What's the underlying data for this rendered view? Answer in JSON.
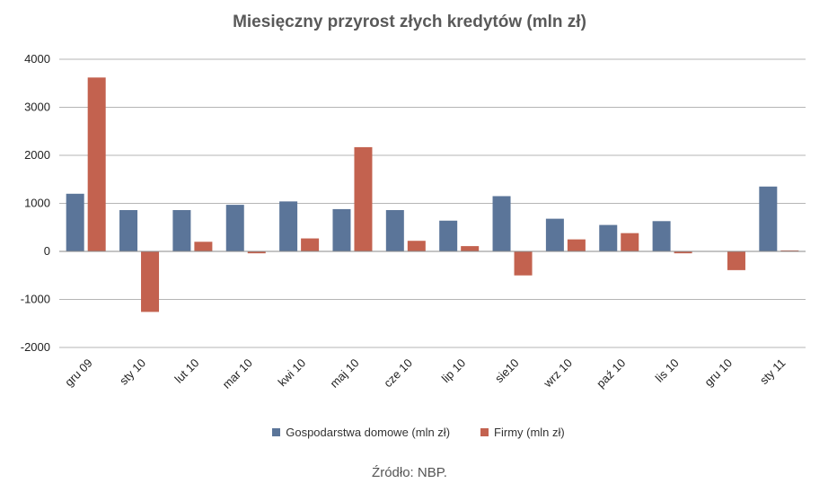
{
  "chart_data": {
    "type": "bar",
    "title": "Miesięczny przyrost złych kredytów (mln zł)",
    "categories": [
      "gru 09",
      "sty 10",
      "lut 10",
      "mar 10",
      "kwi 10",
      "maj 10",
      "cze 10",
      "lip 10",
      "sie10",
      "wrz 10",
      "paź 10",
      "lis 10",
      "gru 10",
      "sty 11"
    ],
    "series": [
      {
        "name": "Gospodarstwa domowe (mln zł)",
        "color": "#5b7599",
        "values": [
          1200,
          860,
          860,
          970,
          1040,
          880,
          860,
          640,
          1150,
          680,
          550,
          630,
          0,
          1350
        ]
      },
      {
        "name": "Firmy (mln zł)",
        "color": "#c3624f",
        "values": [
          3620,
          -1260,
          200,
          -40,
          270,
          2170,
          220,
          110,
          -500,
          250,
          380,
          -40,
          -390,
          20
        ]
      }
    ],
    "ylim": [
      -2000,
      4000
    ],
    "yticks": [
      -2000,
      -1000,
      0,
      1000,
      2000,
      3000,
      4000
    ],
    "ytick_labels": [
      "-2000",
      "-1000",
      "0",
      "1000",
      "2000",
      "3000",
      "4000"
    ],
    "grid": true,
    "legend_position": "bottom"
  },
  "source": "Źródło: NBP."
}
